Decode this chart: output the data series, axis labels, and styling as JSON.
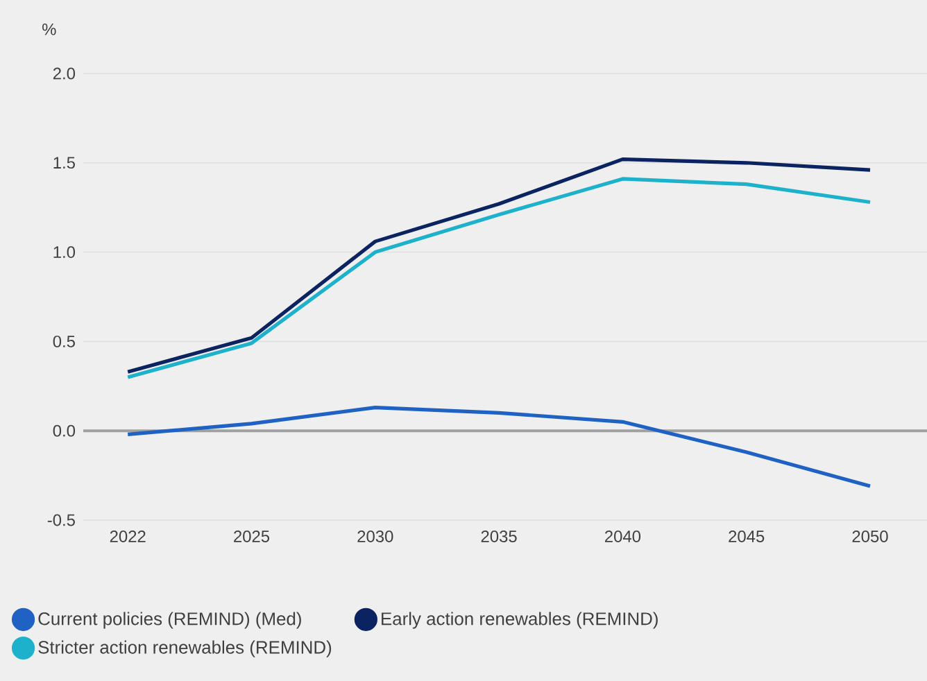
{
  "chart_data": {
    "type": "line",
    "ylabel": "%",
    "categories": [
      "2022",
      "2025",
      "2030",
      "2035",
      "2040",
      "2045",
      "2050"
    ],
    "series": [
      {
        "name": "Current policies (REMIND) (Med)",
        "color": "#1f62c4",
        "values": [
          -0.02,
          0.04,
          0.13,
          0.1,
          0.05,
          -0.12,
          -0.31
        ]
      },
      {
        "name": "Early action renewables (REMIND)",
        "color": "#0b2361",
        "values": [
          0.33,
          0.52,
          1.06,
          1.27,
          1.52,
          1.5,
          1.46
        ]
      },
      {
        "name": "Stricter action renewables (REMIND)",
        "color": "#1eb1cc",
        "values": [
          0.3,
          0.49,
          1.0,
          1.21,
          1.41,
          1.38,
          1.28
        ]
      }
    ],
    "ylim": [
      -0.5,
      2.0
    ],
    "yticks": [
      {
        "value": -0.5,
        "label": "-0.5"
      },
      {
        "value": 0,
        "label": "0.0"
      },
      {
        "value": 0.5,
        "label": "0.5"
      },
      {
        "value": 1,
        "label": "1.0"
      },
      {
        "value": 1.5,
        "label": "1.5"
      },
      {
        "value": 2,
        "label": "2.0"
      }
    ],
    "ref_lines": [
      {
        "axis": "y",
        "value": 0,
        "color": "#a0a0a0"
      }
    ],
    "grid": "y",
    "legend": "bottom",
    "line_style": "solid",
    "marker": "none"
  }
}
